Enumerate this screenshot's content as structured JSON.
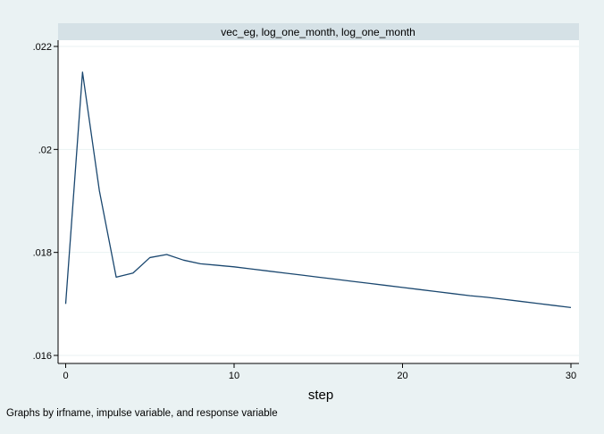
{
  "chart_data": {
    "type": "line",
    "title": "vec_eg, log_one_month, log_one_month",
    "xlabel": "step",
    "ylabel": "",
    "note": "Graphs by irfname, impulse variable, and response variable",
    "xlim": [
      0,
      30
    ],
    "ylim": [
      0.016,
      0.022
    ],
    "xticks": [
      0,
      10,
      20,
      30
    ],
    "xtick_labels": [
      "0",
      "10",
      "20",
      "30"
    ],
    "yticks": [
      0.016,
      0.018,
      0.02,
      0.022
    ],
    "ytick_labels": [
      ".016",
      ".018",
      ".02",
      ".022"
    ],
    "grid": true,
    "legend": "none",
    "series": [
      {
        "color": "#1a476f",
        "x": [
          0,
          1,
          2,
          3,
          4,
          5,
          6,
          7,
          8,
          9,
          10,
          11,
          12,
          13,
          14,
          15,
          16,
          17,
          18,
          19,
          20,
          21,
          22,
          23,
          24,
          25,
          26,
          27,
          28,
          29,
          30
        ],
        "y": [
          0.017,
          0.0215,
          0.0192,
          0.01752,
          0.0176,
          0.0179,
          0.01796,
          0.01785,
          0.01778,
          0.01775,
          0.01772,
          0.01768,
          0.01764,
          0.0176,
          0.01756,
          0.01752,
          0.01748,
          0.01744,
          0.0174,
          0.01736,
          0.01732,
          0.01728,
          0.01724,
          0.0172,
          0.01716,
          0.01713,
          0.01709,
          0.01705,
          0.01701,
          0.01697,
          0.01693
        ]
      }
    ]
  }
}
